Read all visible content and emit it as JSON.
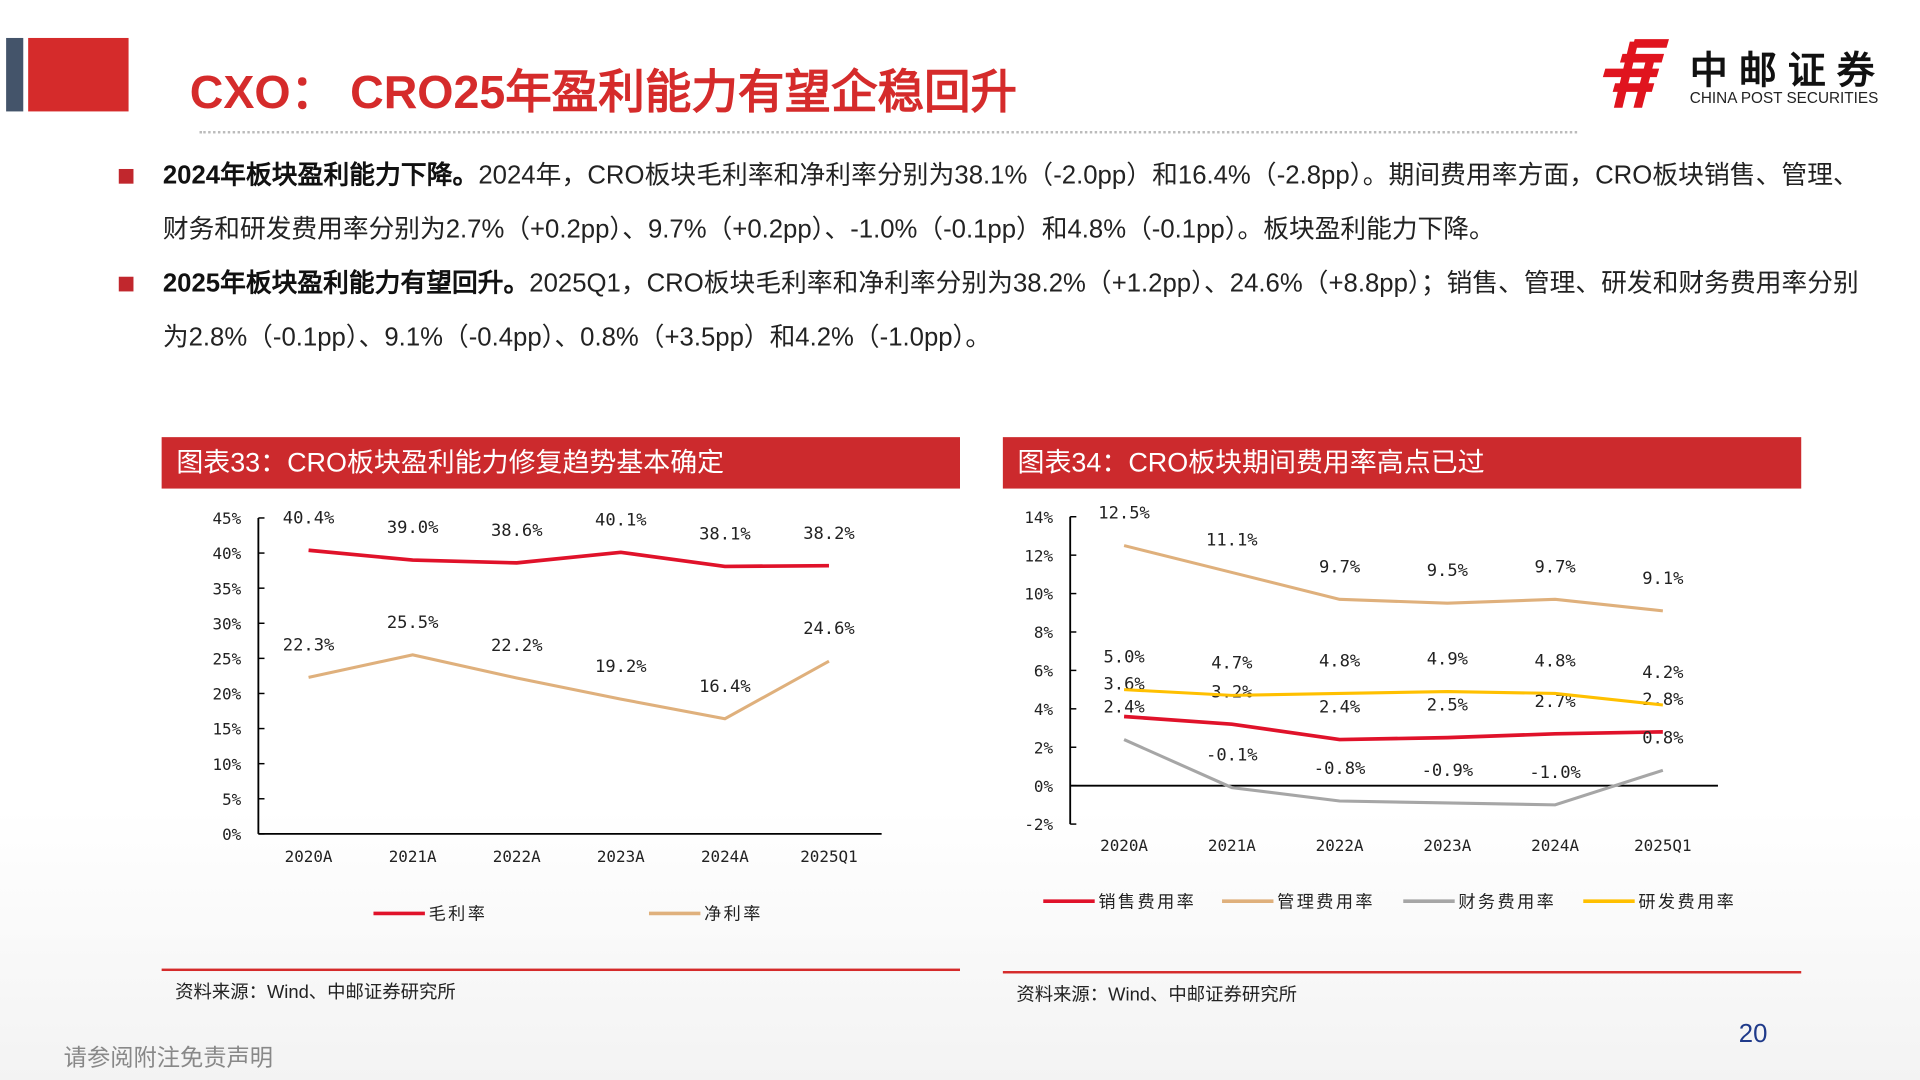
{
  "header": {
    "title": "CXO： CRO25年盈利能力有望企稳回升",
    "logo": {
      "cn": "中邮证券",
      "en": "CHINA POST SECURITIES"
    }
  },
  "bullets": [
    {
      "bold": "2024年板块盈利能力下降。",
      "text": "2024年，CRO板块毛利率和净利率分别为38.1%（-2.0pp）和16.4%（-2.8pp）。期间费用率方面，CRO板块销售、管理、财务和研发费用率分别为2.7%（+0.2pp）、9.7%（+0.2pp）、-1.0%（-0.1pp）和4.8%（-0.1pp）。板块盈利能力下降。"
    },
    {
      "bold": "2025年板块盈利能力有望回升。",
      "text": "2025Q1，CRO板块毛利率和净利率分别为38.2%（+1.2pp）、24.6%（+8.8pp）；销售、管理、研发和财务费用率分别为2.8%（-0.1pp）、9.1%（-0.4pp）、0.8%（+3.5pp）和4.2%（-1.0pp）。"
    }
  ],
  "figures": [
    {
      "title": "图表33：CRO板块盈利能力修复趋势基本确定",
      "source": "资料来源：Wind、中邮证券研究所"
    },
    {
      "title": "图表34：CRO板块期间费用率高点已过",
      "source": "资料来源：Wind、中邮证券研究所"
    }
  ],
  "footer": {
    "disclaimer": "请参阅附注免责声明",
    "page": "20"
  },
  "chart_data": [
    {
      "type": "line",
      "categories": [
        "2020A",
        "2021A",
        "2022A",
        "2023A",
        "2024A",
        "2025Q1"
      ],
      "ylim": [
        0,
        45
      ],
      "yticks": [
        "0%",
        "5%",
        "10%",
        "15%",
        "20%",
        "25%",
        "30%",
        "35%",
        "40%",
        "45%"
      ],
      "legend": "bottom",
      "series": [
        {
          "name": "毛利率",
          "color": "#e0122a",
          "values": [
            40.4,
            39.0,
            38.6,
            40.1,
            38.1,
            38.2
          ],
          "labels": [
            "40.4%",
            "39.0%",
            "38.6%",
            "40.1%",
            "38.1%",
            "38.2%"
          ]
        },
        {
          "name": "净利率",
          "color": "#dfb07c",
          "values": [
            22.3,
            25.5,
            22.2,
            19.2,
            16.4,
            24.6
          ],
          "labels": [
            "22.3%",
            "25.5%",
            "22.2%",
            "19.2%",
            "16.4%",
            "24.6%"
          ]
        }
      ]
    },
    {
      "type": "line",
      "categories": [
        "2020A",
        "2021A",
        "2022A",
        "2023A",
        "2024A",
        "2025Q1"
      ],
      "ylim": [
        -2,
        14
      ],
      "yticks": [
        "-2%",
        "0%",
        "2%",
        "4%",
        "6%",
        "8%",
        "10%",
        "12%",
        "14%"
      ],
      "legend": "bottom",
      "series": [
        {
          "name": "销售费用率",
          "color": "#e0122a",
          "values": [
            3.6,
            3.2,
            2.4,
            2.5,
            2.7,
            2.8
          ],
          "labels": [
            "3.6%",
            "3.2%",
            "2.4%",
            "2.5%",
            "2.7%",
            "2.8%"
          ]
        },
        {
          "name": "管理费用率",
          "color": "#dfb07c",
          "values": [
            12.5,
            11.1,
            9.7,
            9.5,
            9.7,
            9.1
          ],
          "labels": [
            "12.5%",
            "11.1%",
            "9.7%",
            "9.5%",
            "9.7%",
            "9.1%"
          ]
        },
        {
          "name": "财务费用率",
          "color": "#a6a6a6",
          "values": [
            2.4,
            -0.1,
            -0.8,
            -0.9,
            -1.0,
            0.8
          ],
          "labels": [
            "2.4%",
            "-0.1%",
            "-0.8%",
            "-0.9%",
            "-1.0%",
            "0.8%"
          ]
        },
        {
          "name": "研发费用率",
          "color": "#ffc000",
          "values": [
            5.0,
            4.7,
            4.8,
            4.9,
            4.8,
            4.2
          ],
          "labels": [
            "5.0%",
            "4.7%",
            "4.8%",
            "4.9%",
            "4.8%",
            "4.2%"
          ]
        }
      ]
    }
  ]
}
